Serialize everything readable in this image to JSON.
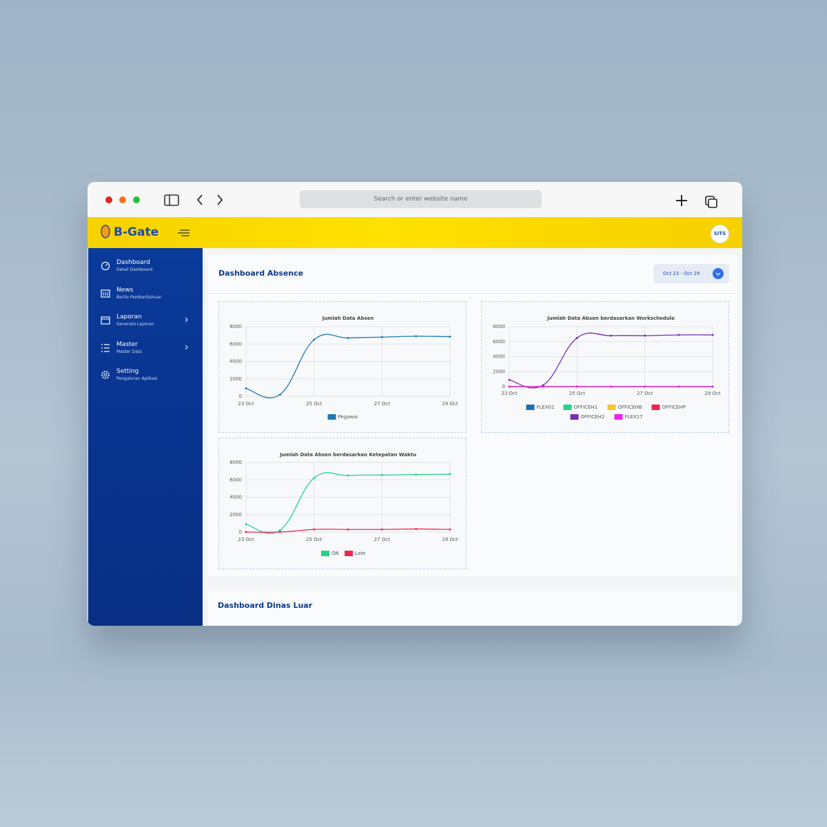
{
  "browser": {
    "search_placeholder": "Search or enter website name"
  },
  "header": {
    "logo": "B-Gate",
    "avatar": "SITS"
  },
  "sidebar": {
    "items": [
      {
        "label": "Dashboard",
        "sublabel": "Detail Dashboard"
      },
      {
        "label": "News",
        "sublabel": "Berita Pemberitahuan"
      },
      {
        "label": "Laporan",
        "sublabel": "Generate Laporan"
      },
      {
        "label": "Master",
        "sublabel": "Master Data"
      },
      {
        "label": "Setting",
        "sublabel": "Pengaturan Aplikasi"
      }
    ]
  },
  "main": {
    "title": "Dashboard Absence",
    "date_range": "Oct 23 - Oct 29",
    "section2_title": "Dashboard Dinas Luar"
  },
  "chart_data": [
    {
      "type": "line",
      "title": "Jumlah Data Absen",
      "categories": [
        "23 Oct",
        null,
        "25 Oct",
        null,
        "27 Oct",
        null,
        "29 Oct"
      ],
      "series": [
        {
          "name": "Pegawai",
          "color": "#1f78b4",
          "values": [
            900,
            200,
            6500,
            6700,
            6800,
            6900,
            6850
          ]
        }
      ],
      "ylim": [
        0,
        8000
      ],
      "yticks": [
        0,
        2000,
        4000,
        6000,
        8000
      ],
      "grid": true
    },
    {
      "type": "line",
      "title": "Jumlah Data Absen berdasarkan Workschedule",
      "categories": [
        "23 Oct",
        null,
        "25 Oct",
        null,
        "27 Oct",
        null,
        "29 Oct"
      ],
      "series": [
        {
          "name": "FLEX01",
          "color": "#1f6fb0",
          "values": [
            0,
            0,
            0,
            0,
            0,
            0,
            0
          ]
        },
        {
          "name": "OFFICEH1",
          "color": "#22d38c",
          "values": [
            0,
            0,
            0,
            0,
            0,
            0,
            0
          ]
        },
        {
          "name": "OFFICEHB",
          "color": "#f7c531",
          "values": [
            0,
            0,
            0,
            0,
            0,
            0,
            0
          ]
        },
        {
          "name": "OFFICEHP",
          "color": "#f0264f",
          "values": [
            0,
            0,
            0,
            0,
            0,
            0,
            0
          ]
        },
        {
          "name": "OFFICEH2",
          "color": "#7b2cb5",
          "values": [
            900,
            200,
            6500,
            6800,
            6800,
            6900,
            6900
          ]
        },
        {
          "name": "FLEX17",
          "color": "#f01ef0",
          "values": [
            0,
            0,
            0,
            0,
            0,
            0,
            0
          ]
        }
      ],
      "ylim": [
        0,
        8000
      ],
      "yticks": [
        0,
        2000,
        4000,
        6000,
        8000
      ],
      "grid": true
    },
    {
      "type": "line",
      "title": "Jumlah Data Absen berdasarkan Ketepatan Waktu",
      "categories": [
        "23 Oct",
        null,
        "25 Oct",
        null,
        "27 Oct",
        null,
        "29 Oct"
      ],
      "series": [
        {
          "name": "ON",
          "color": "#22d38c",
          "values": [
            900,
            200,
            6200,
            6500,
            6550,
            6600,
            6650
          ]
        },
        {
          "name": "Late",
          "color": "#f0264f",
          "values": [
            0,
            0,
            300,
            300,
            300,
            350,
            300
          ]
        }
      ],
      "ylim": [
        0,
        8000
      ],
      "yticks": [
        0,
        2000,
        4000,
        6000,
        8000
      ],
      "grid": true
    }
  ]
}
